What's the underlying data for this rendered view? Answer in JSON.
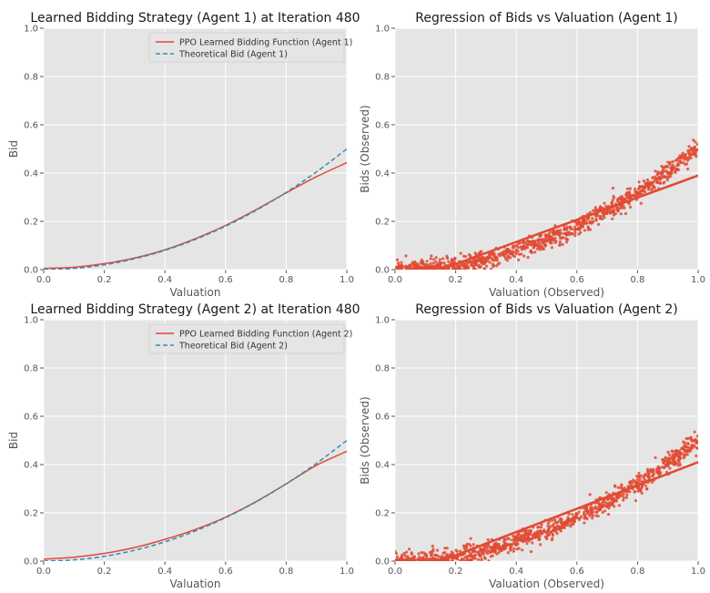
{
  "colors": {
    "panel_bg": "#e5e5e5",
    "grid": "#ffffff",
    "ppo_line": "#e24a33",
    "theoretical_line": "#348abd",
    "scatter": "#e24a33"
  },
  "chart_data": [
    {
      "type": "line",
      "title": "Learned Bidding Strategy (Agent 1) at Iteration 480",
      "xlabel": "Valuation",
      "ylabel": "Bid",
      "xlim": [
        0,
        1
      ],
      "ylim": [
        0,
        1
      ],
      "xticks": [
        "0.0",
        "0.2",
        "0.4",
        "0.6",
        "0.8",
        "1.0"
      ],
      "yticks": [
        "0.0",
        "0.2",
        "0.4",
        "0.6",
        "0.8",
        "1.0"
      ],
      "grid": true,
      "legend_position": "top-right",
      "series": [
        {
          "name": "PPO Learned Bidding Function (Agent 1)",
          "style": "solid",
          "color": "#e24a33",
          "x": [
            0,
            0.1,
            0.2,
            0.3,
            0.4,
            0.5,
            0.6,
            0.7,
            0.8,
            0.9,
            1.0
          ],
          "y": [
            0.005,
            0.01,
            0.025,
            0.048,
            0.082,
            0.128,
            0.183,
            0.248,
            0.318,
            0.385,
            0.443
          ]
        },
        {
          "name": "Theoretical Bid (Agent 1)",
          "style": "dashed",
          "color": "#348abd",
          "x": [
            0,
            0.1,
            0.2,
            0.3,
            0.4,
            0.5,
            0.6,
            0.7,
            0.8,
            0.9,
            1.0
          ],
          "y": [
            0,
            0.005,
            0.02,
            0.045,
            0.08,
            0.125,
            0.18,
            0.245,
            0.32,
            0.405,
            0.5
          ]
        }
      ]
    },
    {
      "type": "scatter",
      "title": "Regression of Bids vs Valuation (Agent 1)",
      "xlabel": "Valuation (Observed)",
      "ylabel": "Bids (Observed)",
      "xlim": [
        0,
        1
      ],
      "ylim": [
        0,
        1
      ],
      "xticks": [
        "0.0",
        "0.2",
        "0.4",
        "0.6",
        "0.8",
        "1.0"
      ],
      "yticks": [
        "0.0",
        "0.2",
        "0.4",
        "0.6",
        "0.8",
        "1.0"
      ],
      "grid": true,
      "point_count": 1000,
      "point_model": "y ≈ 0.5·x² with noise (sd ≈ 0.02), clipped at 0",
      "regression_line": {
        "x": [
          0.15,
          1.0
        ],
        "y": [
          0.0,
          0.39
        ]
      },
      "color": "#e24a33"
    },
    {
      "type": "line",
      "title": "Learned Bidding Strategy (Agent 2) at Iteration 480",
      "xlabel": "Valuation",
      "ylabel": "Bid",
      "xlim": [
        0,
        1
      ],
      "ylim": [
        0,
        1
      ],
      "xticks": [
        "0.0",
        "0.2",
        "0.4",
        "0.6",
        "0.8",
        "1.0"
      ],
      "yticks": [
        "0.0",
        "0.2",
        "0.4",
        "0.6",
        "0.8",
        "1.0"
      ],
      "grid": true,
      "legend_position": "top-right",
      "series": [
        {
          "name": "PPO Learned Bidding Function (Agent 2)",
          "style": "solid",
          "color": "#e24a33",
          "x": [
            0,
            0.1,
            0.2,
            0.3,
            0.4,
            0.5,
            0.6,
            0.7,
            0.8,
            0.9,
            1.0
          ],
          "y": [
            0.008,
            0.016,
            0.032,
            0.056,
            0.09,
            0.131,
            0.182,
            0.246,
            0.32,
            0.397,
            0.455
          ]
        },
        {
          "name": "Theoretical Bid (Agent 2)",
          "style": "dashed",
          "color": "#348abd",
          "x": [
            0,
            0.1,
            0.2,
            0.3,
            0.4,
            0.5,
            0.6,
            0.7,
            0.8,
            0.9,
            1.0
          ],
          "y": [
            0,
            0.005,
            0.02,
            0.045,
            0.08,
            0.125,
            0.18,
            0.245,
            0.32,
            0.405,
            0.5
          ]
        }
      ]
    },
    {
      "type": "scatter",
      "title": "Regression of Bids vs Valuation (Agent 2)",
      "xlabel": "Valuation (Observed)",
      "ylabel": "Bids (Observed)",
      "xlim": [
        0,
        1
      ],
      "ylim": [
        0,
        1
      ],
      "xticks": [
        "0.0",
        "0.2",
        "0.4",
        "0.6",
        "0.8",
        "1.0"
      ],
      "yticks": [
        "0.0",
        "0.2",
        "0.4",
        "0.6",
        "0.8",
        "1.0"
      ],
      "grid": true,
      "point_count": 1000,
      "point_model": "y ≈ 0.5·x² with noise (sd ≈ 0.02), clipped at 0",
      "regression_line": {
        "x": [
          0.15,
          1.0
        ],
        "y": [
          0.0,
          0.41
        ]
      },
      "color": "#e24a33"
    }
  ]
}
